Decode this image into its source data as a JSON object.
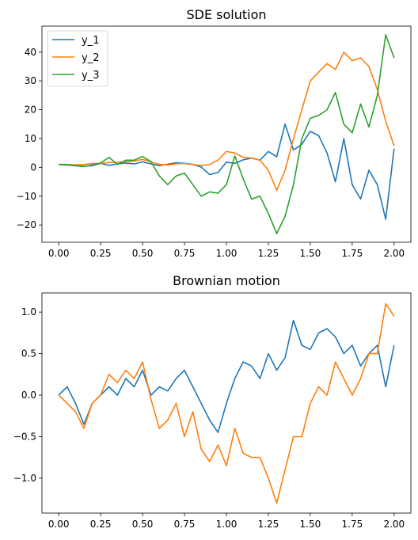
{
  "chart_data": [
    {
      "type": "line",
      "title": "SDE solution",
      "xlabel": "",
      "ylabel": "",
      "xlim": [
        -0.1,
        2.1
      ],
      "ylim": [
        -26,
        49
      ],
      "xticks": [
        0.0,
        0.25,
        0.5,
        0.75,
        1.0,
        1.25,
        1.5,
        1.75,
        2.0
      ],
      "xtick_labels": [
        "0.00",
        "0.25",
        "0.50",
        "0.75",
        "1.00",
        "1.25",
        "1.50",
        "1.75",
        "2.00"
      ],
      "yticks": [
        -20,
        -10,
        0,
        10,
        20,
        30,
        40
      ],
      "ytick_labels": [
        "−20",
        "−10",
        "0",
        "10",
        "20",
        "30",
        "40"
      ],
      "grid": false,
      "legend": "top-left",
      "series": [
        {
          "name": "y_1",
          "color": "#1f77b4",
          "x": [
            0.0,
            0.05,
            0.1,
            0.15,
            0.2,
            0.25,
            0.3,
            0.35,
            0.4,
            0.45,
            0.5,
            0.55,
            0.6,
            0.65,
            0.7,
            0.75,
            0.8,
            0.85,
            0.9,
            0.95,
            1.0,
            1.05,
            1.1,
            1.15,
            1.2,
            1.25,
            1.3,
            1.35,
            1.4,
            1.45,
            1.5,
            1.55,
            1.6,
            1.65,
            1.7,
            1.75,
            1.8,
            1.85,
            1.9,
            1.95,
            2.0
          ],
          "values": [
            1.0,
            0.8,
            0.6,
            0.4,
            0.6,
            1.4,
            0.7,
            1.2,
            1.5,
            1.2,
            1.9,
            1.2,
            0.6,
            1.1,
            1.6,
            1.4,
            1.0,
            0.1,
            -2.5,
            -1.8,
            1.8,
            1.4,
            2.6,
            3.2,
            2.5,
            5.5,
            3.7,
            15.0,
            6.0,
            8.0,
            12.5,
            11.0,
            5.0,
            -5.0,
            10.0,
            -6.0,
            -11.0,
            -1.0,
            -6.0,
            -18.0,
            6.5
          ]
        },
        {
          "name": "y_2",
          "color": "#ff7f0e",
          "x": [
            0.0,
            0.05,
            0.1,
            0.15,
            0.2,
            0.25,
            0.3,
            0.35,
            0.4,
            0.45,
            0.5,
            0.55,
            0.6,
            0.65,
            0.7,
            0.75,
            0.8,
            0.85,
            0.9,
            0.95,
            1.0,
            1.05,
            1.1,
            1.15,
            1.2,
            1.25,
            1.3,
            1.35,
            1.4,
            1.45,
            1.5,
            1.55,
            1.6,
            1.65,
            1.7,
            1.75,
            1.8,
            1.85,
            1.9,
            1.95,
            2.0
          ],
          "values": [
            0.9,
            0.9,
            0.9,
            1.0,
            1.3,
            1.4,
            1.7,
            1.8,
            2.0,
            2.2,
            2.8,
            1.9,
            1.0,
            0.8,
            1.2,
            1.4,
            1.0,
            0.6,
            1.0,
            2.5,
            5.5,
            5.0,
            3.5,
            3.2,
            2.5,
            -1.0,
            -8.0,
            -1.0,
            10.0,
            20.0,
            30.0,
            33.0,
            36.0,
            34.0,
            40.0,
            37.0,
            38.0,
            35.0,
            27.0,
            16.0,
            7.5
          ]
        },
        {
          "name": "y_3",
          "color": "#2ca02c",
          "x": [
            0.0,
            0.05,
            0.1,
            0.15,
            0.2,
            0.25,
            0.3,
            0.35,
            0.4,
            0.45,
            0.5,
            0.55,
            0.6,
            0.65,
            0.7,
            0.75,
            0.8,
            0.85,
            0.9,
            0.95,
            1.0,
            1.05,
            1.1,
            1.15,
            1.2,
            1.25,
            1.3,
            1.35,
            1.4,
            1.45,
            1.5,
            1.55,
            1.6,
            1.65,
            1.7,
            1.75,
            1.8,
            1.85,
            1.9,
            1.95,
            2.0
          ],
          "values": [
            1.0,
            1.0,
            0.5,
            0.3,
            0.8,
            1.5,
            3.5,
            1.0,
            2.5,
            2.5,
            3.8,
            2.0,
            -3.0,
            -6.0,
            -3.0,
            -2.0,
            -6.0,
            -10.0,
            -8.5,
            -9.0,
            -6.0,
            4.0,
            -4.0,
            -11.0,
            -10.0,
            -16.0,
            -23.0,
            -17.0,
            -6.0,
            10.0,
            17.0,
            18.0,
            20.0,
            26.0,
            15.0,
            12.0,
            22.0,
            14.0,
            25.0,
            46.0,
            38.0
          ]
        }
      ]
    },
    {
      "type": "line",
      "title": "Brownian motion",
      "xlabel": "",
      "ylabel": "",
      "xlim": [
        -0.1,
        2.1
      ],
      "ylim": [
        -1.42,
        1.23
      ],
      "xticks": [
        0.0,
        0.25,
        0.5,
        0.75,
        1.0,
        1.25,
        1.5,
        1.75,
        2.0
      ],
      "xtick_labels": [
        "0.00",
        "0.25",
        "0.50",
        "0.75",
        "1.00",
        "1.25",
        "1.50",
        "1.75",
        "2.00"
      ],
      "yticks": [
        -1.0,
        -0.5,
        0.0,
        0.5,
        1.0
      ],
      "ytick_labels": [
        "−1.0",
        "−0.5",
        "0.0",
        "0.5",
        "1.0"
      ],
      "grid": false,
      "legend": "none",
      "series": [
        {
          "color": "#1f77b4",
          "x": [
            0.0,
            0.05,
            0.1,
            0.15,
            0.2,
            0.25,
            0.3,
            0.35,
            0.4,
            0.45,
            0.5,
            0.55,
            0.6,
            0.65,
            0.7,
            0.75,
            0.8,
            0.85,
            0.9,
            0.95,
            1.0,
            1.05,
            1.1,
            1.15,
            1.2,
            1.25,
            1.3,
            1.35,
            1.4,
            1.45,
            1.5,
            1.55,
            1.6,
            1.65,
            1.7,
            1.75,
            1.8,
            1.85,
            1.9,
            1.95,
            2.0
          ],
          "values": [
            0.0,
            0.1,
            -0.1,
            -0.35,
            -0.1,
            0.0,
            0.1,
            0.0,
            0.2,
            0.1,
            0.3,
            0.0,
            0.1,
            0.05,
            0.2,
            0.3,
            0.1,
            -0.1,
            -0.3,
            -0.45,
            -0.1,
            0.2,
            0.4,
            0.35,
            0.2,
            0.5,
            0.3,
            0.45,
            0.9,
            0.6,
            0.55,
            0.75,
            0.8,
            0.7,
            0.5,
            0.6,
            0.35,
            0.5,
            0.6,
            0.1,
            0.6
          ]
        },
        {
          "color": "#ff7f0e",
          "x": [
            0.0,
            0.05,
            0.1,
            0.15,
            0.2,
            0.25,
            0.3,
            0.35,
            0.4,
            0.45,
            0.5,
            0.55,
            0.6,
            0.65,
            0.7,
            0.75,
            0.8,
            0.85,
            0.9,
            0.95,
            1.0,
            1.05,
            1.1,
            1.15,
            1.2,
            1.25,
            1.3,
            1.35,
            1.4,
            1.45,
            1.5,
            1.55,
            1.6,
            1.65,
            1.7,
            1.75,
            1.8,
            1.85,
            1.9,
            1.95,
            2.0
          ],
          "values": [
            0.0,
            -0.1,
            -0.2,
            -0.4,
            -0.1,
            0.0,
            0.25,
            0.15,
            0.3,
            0.2,
            0.4,
            -0.05,
            -0.4,
            -0.3,
            -0.1,
            -0.5,
            -0.2,
            -0.65,
            -0.8,
            -0.6,
            -0.85,
            -0.4,
            -0.7,
            -0.75,
            -0.75,
            -1.0,
            -1.3,
            -0.9,
            -0.5,
            -0.5,
            -0.1,
            0.1,
            0.0,
            0.4,
            0.2,
            0.0,
            0.2,
            0.5,
            0.5,
            1.1,
            0.95
          ]
        }
      ]
    }
  ]
}
